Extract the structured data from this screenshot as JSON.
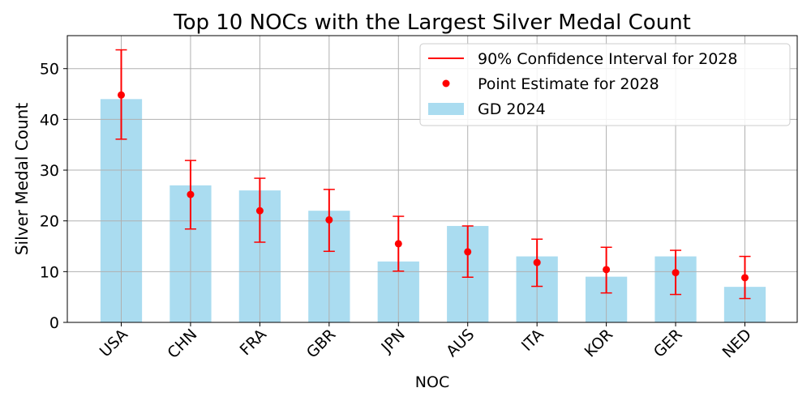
{
  "chart_data": {
    "type": "bar",
    "title": "Top 10 NOCs with the Largest Silver Medal Count",
    "xlabel": "NOC",
    "ylabel": "Silver Medal Count",
    "ylim": [
      0,
      56.5
    ],
    "yticks": [
      0,
      10,
      20,
      30,
      40,
      50
    ],
    "grid": true,
    "legend_position": "top-right",
    "categories": [
      "USA",
      "CHN",
      "FRA",
      "GBR",
      "JPN",
      "AUS",
      "ITA",
      "KOR",
      "GER",
      "NED"
    ],
    "series": [
      {
        "name": "GD 2024",
        "kind": "bar",
        "color": "#aadcf0",
        "values": [
          44,
          27,
          26,
          22,
          12,
          19,
          13,
          9,
          13,
          7
        ]
      },
      {
        "name": "Point Estimate for 2028",
        "kind": "point",
        "color": "#ff0000",
        "values": [
          44.8,
          25.2,
          22.0,
          20.2,
          15.5,
          13.9,
          11.8,
          10.4,
          9.8,
          8.8
        ]
      },
      {
        "name": "90% Confidence Interval for 2028",
        "kind": "errorbar",
        "color": "#ff0000",
        "lower": [
          36.1,
          18.4,
          15.8,
          14.0,
          10.1,
          8.9,
          7.1,
          5.8,
          5.5,
          4.7
        ],
        "upper": [
          53.7,
          31.9,
          28.4,
          26.2,
          20.9,
          19.0,
          16.4,
          14.8,
          14.2,
          13.0
        ]
      }
    ],
    "legend": [
      {
        "label": "90% Confidence Interval for 2028",
        "marker": "line"
      },
      {
        "label": "Point Estimate for 2028",
        "marker": "dot"
      },
      {
        "label": "GD 2024",
        "marker": "box"
      }
    ]
  }
}
